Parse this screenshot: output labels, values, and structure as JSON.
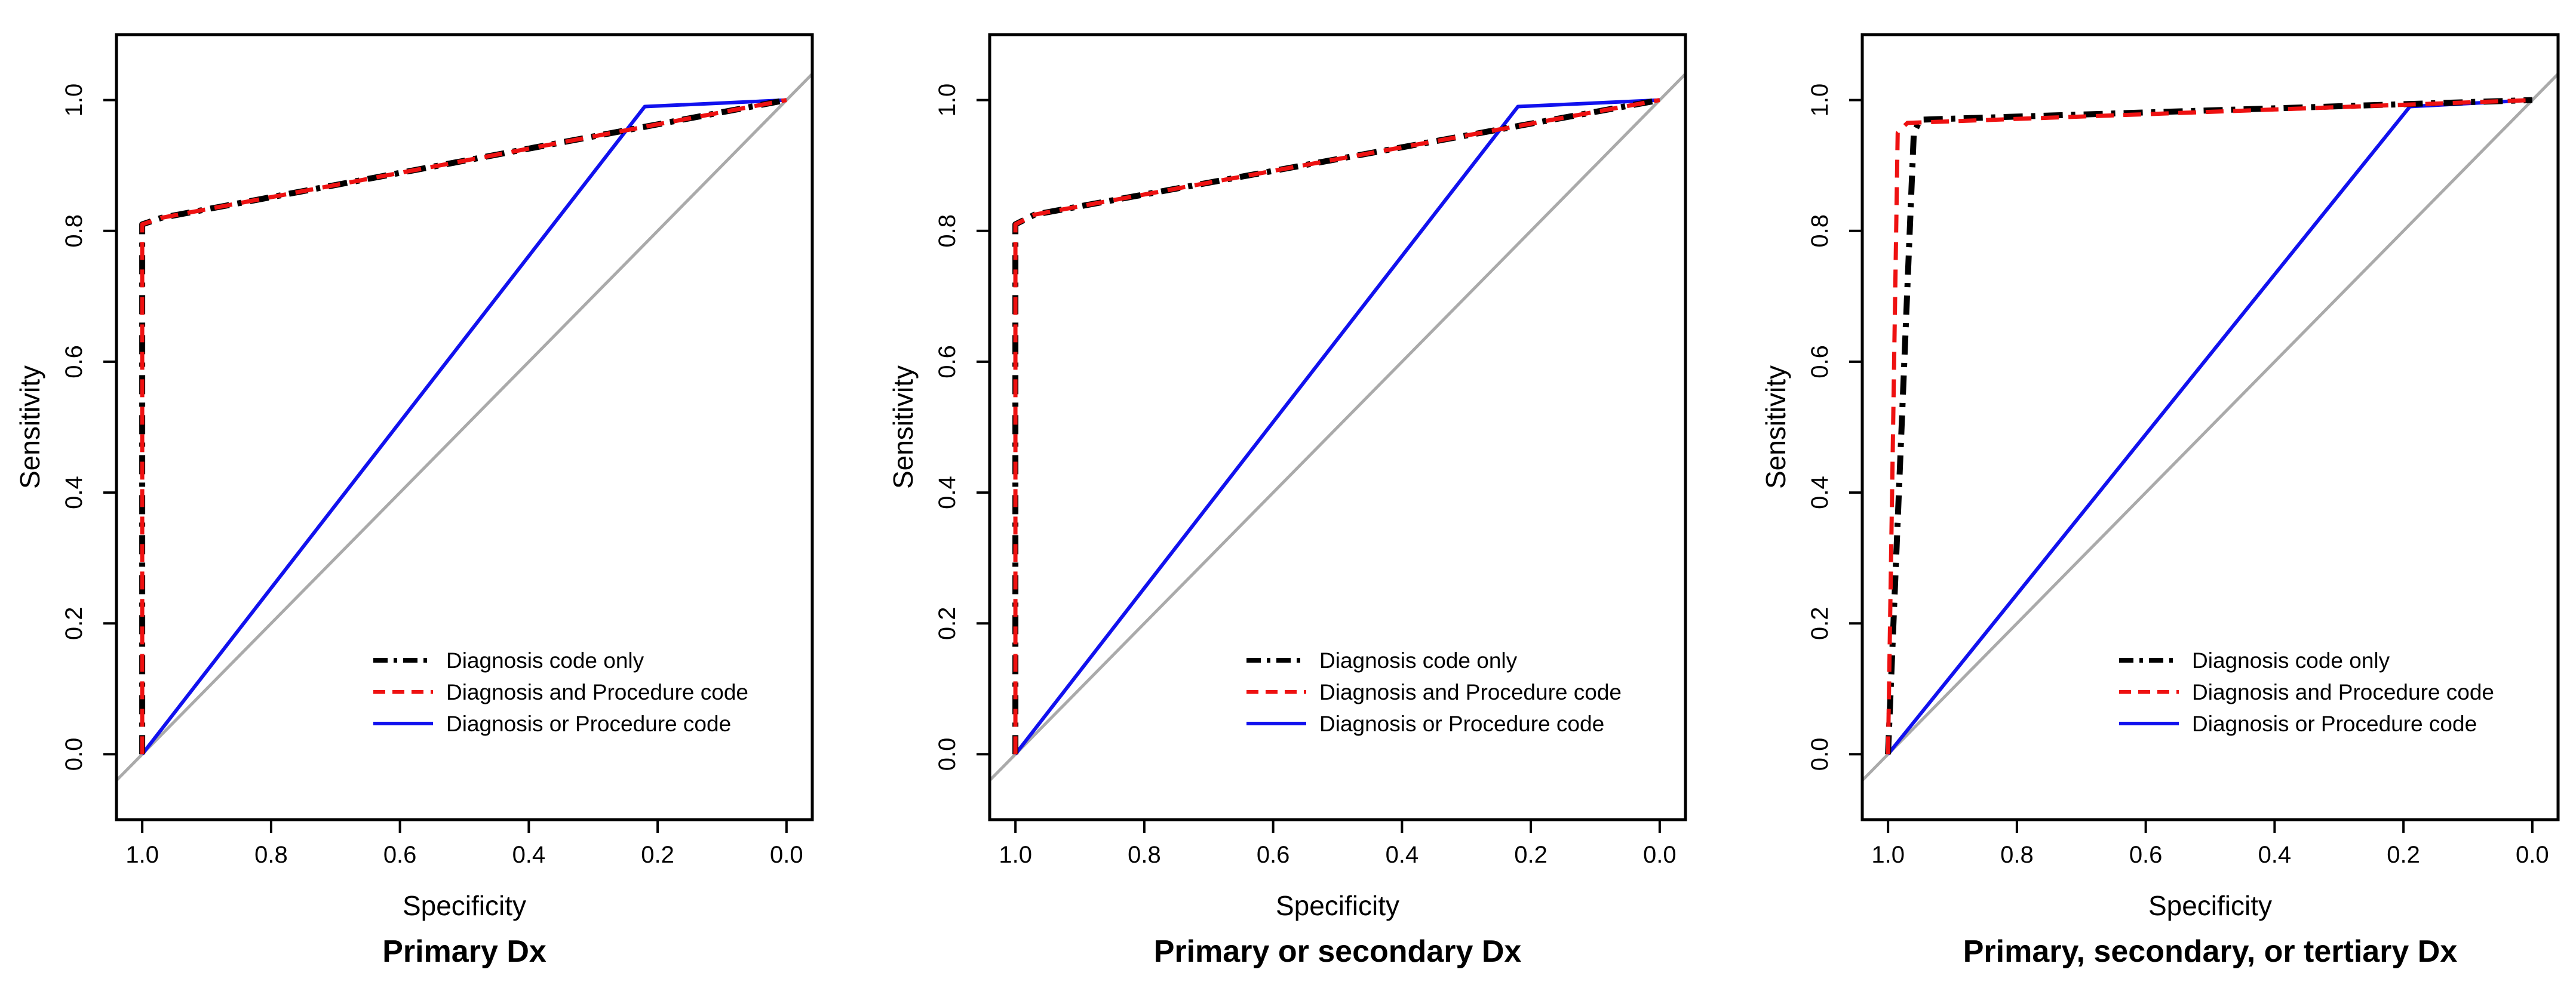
{
  "chart_data": [
    {
      "type": "line",
      "title": "Primary Dx",
      "xlabel": "Specificity",
      "ylabel": "Sensitivity",
      "xlim": [
        1.04,
        -0.04
      ],
      "ylim": [
        -0.1,
        1.1
      ],
      "x_reversed": true,
      "xticks": [
        1.0,
        0.8,
        0.6,
        0.4,
        0.2,
        0.0
      ],
      "xtick_labels": [
        "1.0",
        "0.8",
        "0.6",
        "0.4",
        "0.2",
        "0.0"
      ],
      "yticks": [
        0.0,
        0.2,
        0.4,
        0.6,
        0.8,
        1.0
      ],
      "ytick_labels": [
        "0.0",
        "0.2",
        "0.4",
        "0.6",
        "0.8",
        "1.0"
      ],
      "legend_position": "bottom-right",
      "reference_line": {
        "name": "chance",
        "color": "#aaaaaa",
        "x": [
          1.04,
          -0.04
        ],
        "y": [
          -0.04,
          1.04
        ]
      },
      "series": [
        {
          "name": "Diagnosis code only",
          "color": "#000000",
          "style": "dashdot",
          "x": [
            1.0,
            1.0,
            0.97,
            0.0
          ],
          "y": [
            0.0,
            0.81,
            0.82,
            1.0
          ]
        },
        {
          "name": "Diagnosis and Procedure code",
          "color": "#ee1111",
          "style": "dashed",
          "x": [
            1.0,
            1.0,
            0.97,
            0.0
          ],
          "y": [
            0.0,
            0.81,
            0.82,
            1.0
          ]
        },
        {
          "name": "Diagnosis or Procedure code",
          "color": "#1111ee",
          "style": "solid",
          "x": [
            1.0,
            0.22,
            0.0
          ],
          "y": [
            0.0,
            0.99,
            1.0
          ]
        }
      ]
    },
    {
      "type": "line",
      "title": "Primary or secondary Dx",
      "xlabel": "Specificity",
      "ylabel": "Sensitivity",
      "xlim": [
        1.04,
        -0.04
      ],
      "ylim": [
        -0.1,
        1.1
      ],
      "x_reversed": true,
      "xticks": [
        1.0,
        0.8,
        0.6,
        0.4,
        0.2,
        0.0
      ],
      "xtick_labels": [
        "1.0",
        "0.8",
        "0.6",
        "0.4",
        "0.2",
        "0.0"
      ],
      "yticks": [
        0.0,
        0.2,
        0.4,
        0.6,
        0.8,
        1.0
      ],
      "ytick_labels": [
        "0.0",
        "0.2",
        "0.4",
        "0.6",
        "0.8",
        "1.0"
      ],
      "legend_position": "bottom-right",
      "reference_line": {
        "name": "chance",
        "color": "#aaaaaa",
        "x": [
          1.04,
          -0.04
        ],
        "y": [
          -0.04,
          1.04
        ]
      },
      "series": [
        {
          "name": "Diagnosis code only",
          "color": "#000000",
          "style": "dashdot",
          "x": [
            1.0,
            1.0,
            0.97,
            0.0
          ],
          "y": [
            0.0,
            0.81,
            0.825,
            1.0
          ]
        },
        {
          "name": "Diagnosis and Procedure code",
          "color": "#ee1111",
          "style": "dashed",
          "x": [
            1.0,
            1.0,
            0.97,
            0.0
          ],
          "y": [
            0.0,
            0.81,
            0.825,
            1.0
          ]
        },
        {
          "name": "Diagnosis or Procedure code",
          "color": "#1111ee",
          "style": "solid",
          "x": [
            1.0,
            0.22,
            0.0
          ],
          "y": [
            0.0,
            0.99,
            1.0
          ]
        }
      ]
    },
    {
      "type": "line",
      "title": "Primary, secondary, or tertiary Dx",
      "xlabel": "Specificity",
      "ylabel": "Sensitivity",
      "xlim": [
        1.04,
        -0.04
      ],
      "ylim": [
        -0.1,
        1.1
      ],
      "x_reversed": true,
      "xticks": [
        1.0,
        0.8,
        0.6,
        0.4,
        0.2,
        0.0
      ],
      "xtick_labels": [
        "1.0",
        "0.8",
        "0.6",
        "0.4",
        "0.2",
        "0.0"
      ],
      "yticks": [
        0.0,
        0.2,
        0.4,
        0.6,
        0.8,
        1.0
      ],
      "ytick_labels": [
        "0.0",
        "0.2",
        "0.4",
        "0.6",
        "0.8",
        "1.0"
      ],
      "legend_position": "bottom-right",
      "reference_line": {
        "name": "chance",
        "color": "#aaaaaa",
        "x": [
          1.04,
          -0.04
        ],
        "y": [
          -0.04,
          1.04
        ]
      },
      "series": [
        {
          "name": "Diagnosis code only",
          "color": "#000000",
          "style": "dashdot",
          "x": [
            1.0,
            0.96,
            0.95,
            0.0
          ],
          "y": [
            0.0,
            0.95,
            0.97,
            1.0
          ]
        },
        {
          "name": "Diagnosis and Procedure code",
          "color": "#ee1111",
          "style": "dashed",
          "x": [
            1.0,
            0.985,
            0.97,
            0.0
          ],
          "y": [
            0.0,
            0.95,
            0.965,
            1.0
          ]
        },
        {
          "name": "Diagnosis or Procedure code",
          "color": "#1111ee",
          "style": "solid",
          "x": [
            1.0,
            0.19,
            0.0
          ],
          "y": [
            0.0,
            0.99,
            1.0
          ]
        }
      ]
    }
  ]
}
